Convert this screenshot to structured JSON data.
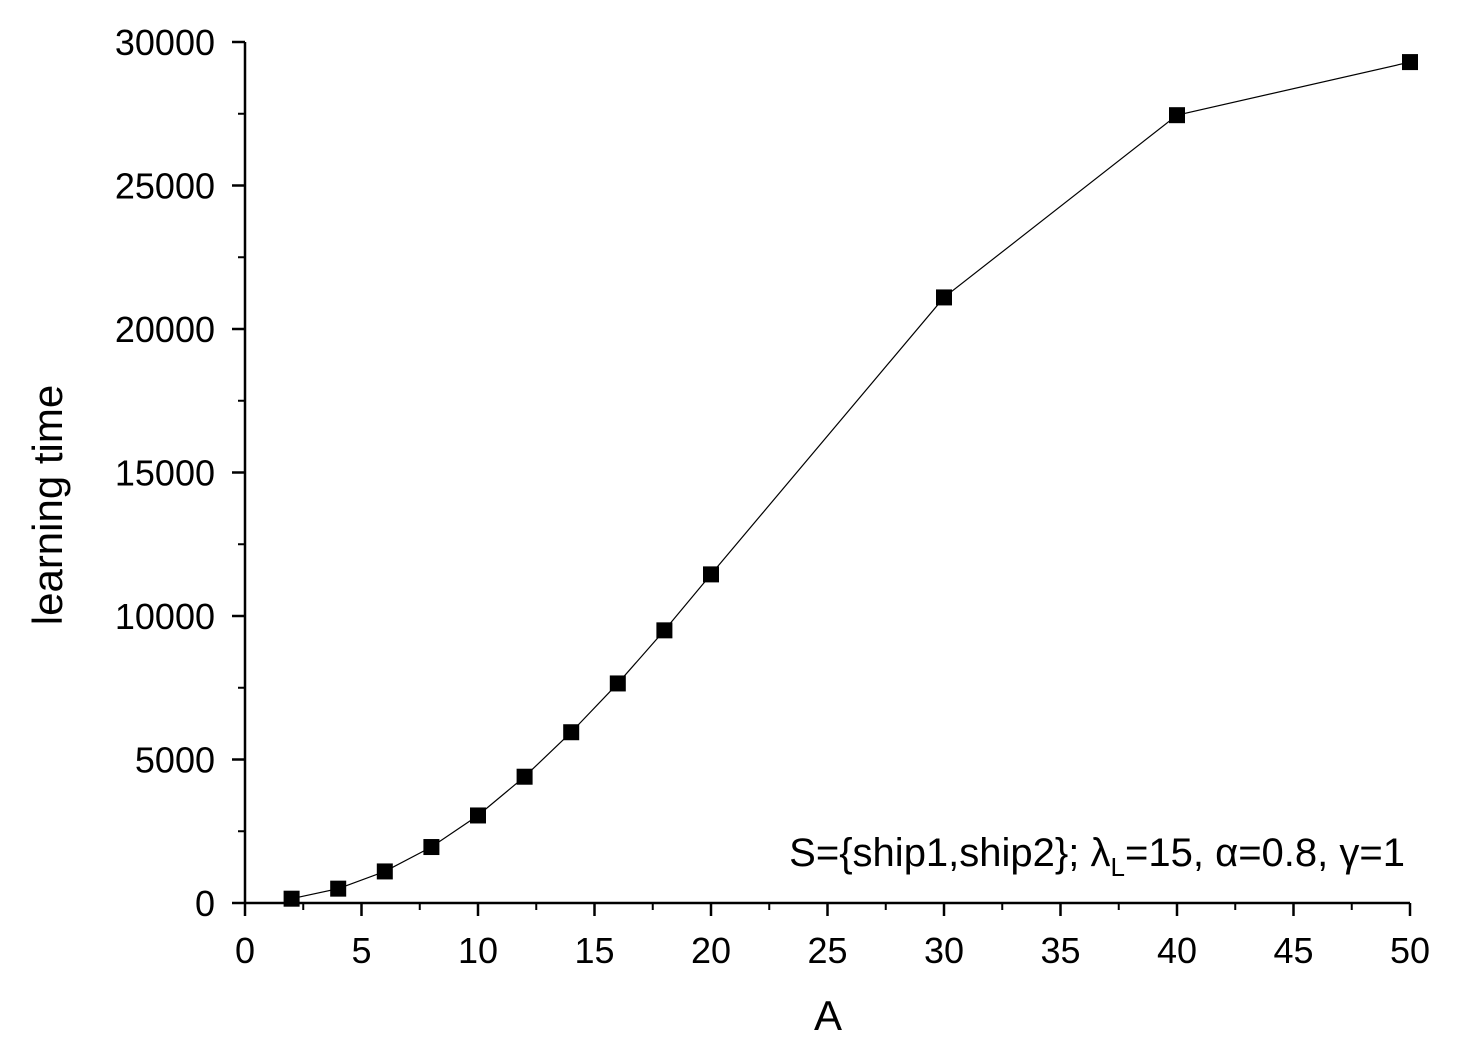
{
  "chart_data": {
    "type": "line",
    "title": "",
    "xlabel": "A",
    "ylabel": "learning time",
    "xlim": [
      0,
      50
    ],
    "ylim": [
      0,
      30000
    ],
    "x_ticks": [
      "0",
      "5",
      "10",
      "15",
      "20",
      "25",
      "30",
      "35",
      "40",
      "45",
      "50"
    ],
    "y_ticks": [
      "0",
      "5000",
      "10000",
      "15000",
      "20000",
      "25000",
      "30000"
    ],
    "grid": false,
    "marker": "square",
    "line_color": "#000000",
    "marker_color": "#000000",
    "series": [
      {
        "x": [
          2,
          4,
          6,
          8,
          10,
          12,
          14,
          16,
          18,
          20,
          30,
          40,
          50
        ],
        "y": [
          150,
          500,
          1100,
          1950,
          3050,
          4400,
          5950,
          7650,
          9500,
          11450,
          21100,
          27450,
          29300
        ]
      }
    ],
    "annotation": {
      "prefix": "S={ship1,ship2}; ",
      "lambda": "λ",
      "lambda_sub": "L",
      "rest1": "=15, ",
      "alpha": "α",
      "rest2": "=0.8, ",
      "gamma": "γ",
      "rest3": "=1"
    }
  }
}
